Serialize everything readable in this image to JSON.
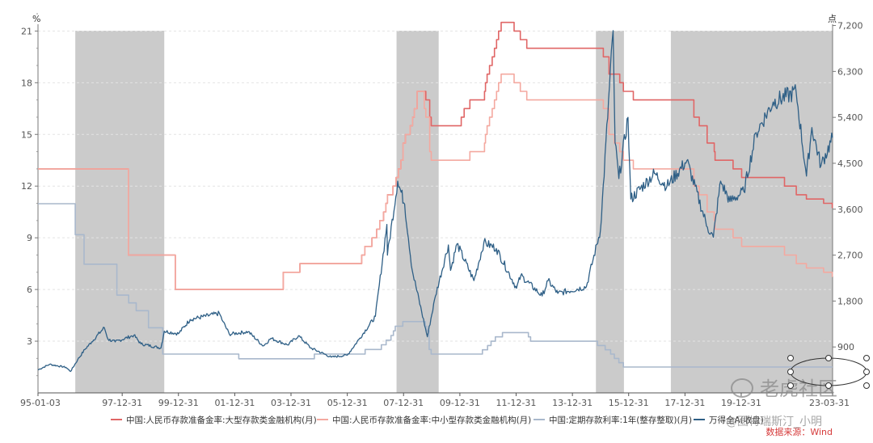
{
  "chart_data": {
    "type": "line",
    "left_axis": {
      "unit": "%",
      "ticks": [
        "3",
        "6",
        "9",
        "12",
        "15",
        "18",
        "21"
      ],
      "tick_values": [
        3,
        6,
        9,
        12,
        15,
        18,
        21
      ],
      "range": [
        0,
        22.8
      ]
    },
    "right_axis": {
      "unit": "点",
      "ticks": [
        "900",
        "1,800",
        "2,700",
        "3,600",
        "4,500",
        "5,400",
        "6,300",
        "7,200"
      ],
      "tick_values": [
        900,
        1800,
        2700,
        3600,
        4500,
        5400,
        6300,
        7200
      ],
      "range": [
        0,
        7700
      ]
    },
    "x_range": [
      "1995-01-03",
      "2023-03-31"
    ],
    "x_ticks": [
      "95-01-03",
      "97-12-31",
      "99-12-31",
      "01-12-31",
      "03-12-31",
      "05-12-31",
      "07-12-31",
      "09-12-31",
      "11-12-31",
      "13-12-31",
      "15-12-31",
      "17-12-31",
      "19-12-31",
      "23-03-31"
    ],
    "x_tick_dates": [
      "1995-01-03",
      "1997-12-31",
      "1999-12-31",
      "2001-12-31",
      "2003-12-31",
      "2005-12-31",
      "2007-12-31",
      "2009-12-31",
      "2011-12-31",
      "2013-12-31",
      "2015-12-31",
      "2017-12-31",
      "2019-12-31",
      "2023-03-31"
    ],
    "shaded_periods": [
      [
        "1996-05-01",
        "1999-06-30"
      ],
      [
        "2007-10-01",
        "2009-03-31"
      ],
      [
        "2014-11-01",
        "2015-10-31"
      ],
      [
        "2017-07-01",
        "2023-03-31"
      ]
    ],
    "grid": "horizontal-dashed",
    "legend_position": "bottom",
    "series": [
      {
        "name": "中国:人民币存款准备金率:大型存款类金融机构(月)",
        "axis": "left",
        "color": "#e06666",
        "step": true,
        "points": [
          [
            "1995-01-03",
            13
          ],
          [
            "1998-03-21",
            8
          ],
          [
            "1999-11-21",
            6
          ],
          [
            "2003-09-21",
            7
          ],
          [
            "2004-04-25",
            7.5
          ],
          [
            "2006-07-05",
            8
          ],
          [
            "2006-08-15",
            8.5
          ],
          [
            "2006-11-15",
            9
          ],
          [
            "2007-01-15",
            9.5
          ],
          [
            "2007-02-25",
            10
          ],
          [
            "2007-04-16",
            10.5
          ],
          [
            "2007-05-15",
            11
          ],
          [
            "2007-06-05",
            11.5
          ],
          [
            "2007-08-15",
            12
          ],
          [
            "2007-09-25",
            12.5
          ],
          [
            "2007-10-25",
            13
          ],
          [
            "2007-11-26",
            13.5
          ],
          [
            "2007-12-25",
            14.5
          ],
          [
            "2008-01-25",
            15
          ],
          [
            "2008-03-25",
            15.5
          ],
          [
            "2008-04-25",
            16
          ],
          [
            "2008-05-20",
            16.5
          ],
          [
            "2008-06-25",
            17.5
          ],
          [
            "2008-10-15",
            17
          ],
          [
            "2008-12-05",
            16
          ],
          [
            "2008-12-25",
            15.5
          ],
          [
            "2010-01-18",
            16
          ],
          [
            "2010-02-25",
            16.5
          ],
          [
            "2010-05-10",
            17
          ],
          [
            "2010-11-16",
            17.5
          ],
          [
            "2010-11-29",
            18
          ],
          [
            "2010-12-20",
            18.5
          ],
          [
            "2011-01-20",
            19
          ],
          [
            "2011-02-24",
            19.5
          ],
          [
            "2011-03-25",
            20
          ],
          [
            "2011-04-21",
            20.5
          ],
          [
            "2011-05-18",
            21
          ],
          [
            "2011-06-20",
            21.5
          ],
          [
            "2011-12-05",
            21
          ],
          [
            "2012-02-24",
            20.5
          ],
          [
            "2012-05-18",
            20
          ],
          [
            "2015-02-05",
            19.5
          ],
          [
            "2015-04-20",
            18.5
          ],
          [
            "2015-09-06",
            18
          ],
          [
            "2015-10-24",
            17.5
          ],
          [
            "2016-03-01",
            17
          ],
          [
            "2018-04-25",
            16
          ],
          [
            "2018-07-05",
            15.5
          ],
          [
            "2018-10-15",
            14.5
          ],
          [
            "2019-01-15",
            14
          ],
          [
            "2019-01-25",
            13.5
          ],
          [
            "2019-09-16",
            13
          ],
          [
            "2020-01-06",
            12.5
          ],
          [
            "2021-07-15",
            12
          ],
          [
            "2021-12-15",
            11.5
          ],
          [
            "2022-04-25",
            11.25
          ],
          [
            "2022-12-05",
            11
          ],
          [
            "2023-03-27",
            10.75
          ],
          [
            "2023-03-31",
            10.75
          ]
        ]
      },
      {
        "name": "中国:人民币存款准备金率:中小型存款类金融机构(月)",
        "axis": "left",
        "color": "#f4a9a0",
        "step": true,
        "points": [
          [
            "1995-01-03",
            13
          ],
          [
            "1998-03-21",
            8
          ],
          [
            "1999-11-21",
            6
          ],
          [
            "2003-09-21",
            7
          ],
          [
            "2004-04-25",
            7.5
          ],
          [
            "2006-07-05",
            8
          ],
          [
            "2006-08-15",
            8.5
          ],
          [
            "2006-11-15",
            9
          ],
          [
            "2007-01-15",
            9.5
          ],
          [
            "2007-02-25",
            10
          ],
          [
            "2007-04-16",
            10.5
          ],
          [
            "2007-05-15",
            11
          ],
          [
            "2007-06-05",
            11.5
          ],
          [
            "2007-08-15",
            12
          ],
          [
            "2007-09-25",
            12.5
          ],
          [
            "2007-10-25",
            13
          ],
          [
            "2007-11-26",
            13.5
          ],
          [
            "2007-12-25",
            14.5
          ],
          [
            "2008-01-25",
            15
          ],
          [
            "2008-03-25",
            15.5
          ],
          [
            "2008-04-25",
            16
          ],
          [
            "2008-05-20",
            16.5
          ],
          [
            "2008-06-25",
            17.5
          ],
          [
            "2008-09-25",
            16.5
          ],
          [
            "2008-10-15",
            16
          ],
          [
            "2008-12-05",
            14
          ],
          [
            "2008-12-25",
            13.5
          ],
          [
            "2010-05-10",
            14
          ],
          [
            "2010-11-16",
            14.5
          ],
          [
            "2010-11-29",
            15
          ],
          [
            "2010-12-20",
            15.5
          ],
          [
            "2011-01-20",
            16
          ],
          [
            "2011-02-24",
            16.5
          ],
          [
            "2011-03-25",
            17
          ],
          [
            "2011-04-21",
            17.5
          ],
          [
            "2011-05-18",
            18
          ],
          [
            "2011-06-20",
            18.5
          ],
          [
            "2011-12-05",
            18
          ],
          [
            "2012-02-24",
            17.5
          ],
          [
            "2012-05-18",
            17
          ],
          [
            "2015-02-05",
            16.5
          ],
          [
            "2015-04-20",
            15
          ],
          [
            "2015-06-28",
            14.5
          ],
          [
            "2015-09-06",
            14
          ],
          [
            "2015-10-24",
            13.5
          ],
          [
            "2016-03-01",
            13
          ],
          [
            "2018-04-25",
            12
          ],
          [
            "2018-07-05",
            11.5
          ],
          [
            "2018-10-15",
            10.5
          ],
          [
            "2019-01-15",
            10
          ],
          [
            "2019-01-25",
            9.5
          ],
          [
            "2019-09-16",
            9
          ],
          [
            "2020-01-06",
            8.5
          ],
          [
            "2021-07-15",
            8
          ],
          [
            "2021-12-15",
            7.5
          ],
          [
            "2022-04-25",
            7.25
          ],
          [
            "2022-12-05",
            7
          ],
          [
            "2023-03-27",
            6.75
          ],
          [
            "2023-03-31",
            6.75
          ]
        ]
      },
      {
        "name": "中国:定期存款利率:1年(整存整取)(月)",
        "axis": "left",
        "color": "#a9b8cc",
        "step": true,
        "points": [
          [
            "1995-01-03",
            10.98
          ],
          [
            "1996-05-01",
            9.18
          ],
          [
            "1996-08-23",
            7.47
          ],
          [
            "1997-10-23",
            5.67
          ],
          [
            "1998-03-25",
            5.22
          ],
          [
            "1998-07-01",
            4.77
          ],
          [
            "1998-12-07",
            3.78
          ],
          [
            "1999-06-10",
            2.25
          ],
          [
            "2002-02-21",
            1.98
          ],
          [
            "2004-10-29",
            2.25
          ],
          [
            "2006-08-19",
            2.52
          ],
          [
            "2007-03-18",
            2.79
          ],
          [
            "2007-05-19",
            3.06
          ],
          [
            "2007-07-21",
            3.33
          ],
          [
            "2007-08-22",
            3.6
          ],
          [
            "2007-09-15",
            3.87
          ],
          [
            "2007-12-21",
            4.14
          ],
          [
            "2008-10-09",
            3.87
          ],
          [
            "2008-10-30",
            3.6
          ],
          [
            "2008-11-27",
            2.52
          ],
          [
            "2008-12-23",
            2.25
          ],
          [
            "2010-10-20",
            2.5
          ],
          [
            "2010-12-26",
            2.75
          ],
          [
            "2011-02-09",
            3
          ],
          [
            "2011-04-06",
            3.25
          ],
          [
            "2011-07-07",
            3.5
          ],
          [
            "2012-06-08",
            3.25
          ],
          [
            "2012-07-06",
            3
          ],
          [
            "2014-11-22",
            2.75
          ],
          [
            "2015-03-01",
            2.5
          ],
          [
            "2015-05-11",
            2.25
          ],
          [
            "2015-06-28",
            2
          ],
          [
            "2015-08-26",
            1.75
          ],
          [
            "2015-10-24",
            1.5
          ],
          [
            "2023-03-31",
            1.5
          ]
        ]
      },
      {
        "name": "万得全A(收盘)",
        "axis": "right",
        "color": "#2e5f86",
        "step": false,
        "points": [
          [
            "1995-01-03",
            450
          ],
          [
            "1995-06-01",
            560
          ],
          [
            "1996-01-01",
            500
          ],
          [
            "1996-03-01",
            420
          ],
          [
            "1996-06-01",
            650
          ],
          [
            "1996-09-01",
            850
          ],
          [
            "1996-12-01",
            1000
          ],
          [
            "1997-05-12",
            1280
          ],
          [
            "1997-07-01",
            1050
          ],
          [
            "1997-10-01",
            1000
          ],
          [
            "1998-06-01",
            1130
          ],
          [
            "1998-09-01",
            960
          ],
          [
            "1999-05-18",
            880
          ],
          [
            "1999-06-30",
            1210
          ],
          [
            "1999-12-31",
            1160
          ],
          [
            "2000-06-01",
            1440
          ],
          [
            "2001-06-14",
            1560
          ],
          [
            "2001-07-30",
            1400
          ],
          [
            "2001-10-22",
            1150
          ],
          [
            "2002-06-24",
            1200
          ],
          [
            "2003-01-06",
            920
          ],
          [
            "2003-04-16",
            1070
          ],
          [
            "2003-11-18",
            940
          ],
          [
            "2004-04-07",
            1120
          ],
          [
            "2004-09-13",
            880
          ],
          [
            "2005-06-06",
            700
          ],
          [
            "2005-12-31",
            740
          ],
          [
            "2006-06-01",
            1050
          ],
          [
            "2006-12-31",
            1500
          ],
          [
            "2007-05-29",
            3300
          ],
          [
            "2007-06-05",
            2700
          ],
          [
            "2007-10-16",
            4150
          ],
          [
            "2008-01-14",
            3700
          ],
          [
            "2008-04-22",
            2400
          ],
          [
            "2008-11-04",
            1100
          ],
          [
            "2009-02-17",
            1900
          ],
          [
            "2009-08-04",
            2900
          ],
          [
            "2009-09-01",
            2400
          ],
          [
            "2009-11-24",
            2920
          ],
          [
            "2010-07-02",
            2200
          ],
          [
            "2010-11-08",
            2950
          ],
          [
            "2011-04-18",
            2830
          ],
          [
            "2012-01-06",
            2050
          ],
          [
            "2012-03-01",
            2300
          ],
          [
            "2012-12-03",
            1900
          ],
          [
            "2013-02-18",
            2200
          ],
          [
            "2013-06-25",
            1950
          ],
          [
            "2014-06-30",
            2080
          ],
          [
            "2014-12-31",
            3200
          ],
          [
            "2015-06-12",
            7100
          ],
          [
            "2015-07-08",
            4900
          ],
          [
            "2015-08-26",
            4200
          ],
          [
            "2015-12-22",
            5400
          ],
          [
            "2016-01-28",
            3800
          ],
          [
            "2016-11-29",
            4300
          ],
          [
            "2017-05-11",
            4050
          ],
          [
            "2018-01-24",
            4550
          ],
          [
            "2018-10-18",
            3250
          ],
          [
            "2019-01-03",
            3050
          ],
          [
            "2019-04-08",
            4150
          ],
          [
            "2019-08-06",
            3750
          ],
          [
            "2020-02-03",
            3950
          ],
          [
            "2020-07-13",
            5100
          ],
          [
            "2021-02-18",
            5700
          ],
          [
            "2021-12-13",
            5900
          ],
          [
            "2022-04-26",
            4250
          ],
          [
            "2022-07-05",
            5200
          ],
          [
            "2022-10-31",
            4450
          ],
          [
            "2023-03-31",
            5000
          ]
        ]
      }
    ],
    "legend": [
      {
        "label": "中国:人民币存款准备金率:大型存款类金融机构(月)",
        "color": "#e06666"
      },
      {
        "label": "中国:人民币存款准备金率:中小型存款类金融机构(月)",
        "color": "#f4a9a0"
      },
      {
        "label": "中国:定期存款利率:1年(整存整取)(月)",
        "color": "#a9b8cc"
      },
      {
        "label": "万得全A(收盘)",
        "color": "#2e5f86"
      }
    ],
    "source": "数据来源：Wind"
  },
  "watermark": {
    "brand": "老虎社区",
    "handle": "@图特瑞斯汀_小明"
  }
}
